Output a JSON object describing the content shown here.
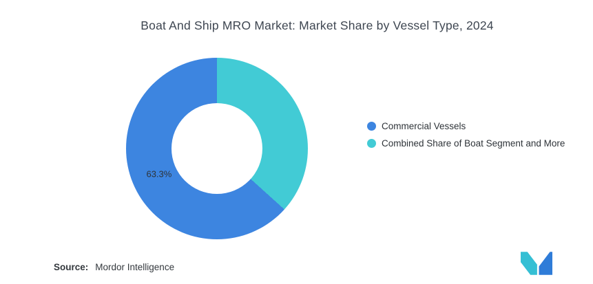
{
  "chart_data": {
    "type": "pie",
    "donut": true,
    "title": "Boat And Ship MRO Market: Market Share by Vessel Type, 2024",
    "slices": [
      {
        "name": "Commercial Vessels",
        "value": 63.3,
        "color": "#3D85E0",
        "data_label": "63.3%"
      },
      {
        "name": "Combined Share of Boat Segment and More",
        "value": 36.7,
        "color": "#42CBD5",
        "data_label": ""
      }
    ],
    "start": "top",
    "direction": "clockwise",
    "legend_position": "right",
    "grid": false,
    "data_label_color": "#2e3338"
  },
  "legend": {
    "items": [
      {
        "label": "Commercial Vessels",
        "color": "#3D85E0"
      },
      {
        "label": "Combined Share of Boat Segment and More",
        "color": "#42CBD5"
      }
    ]
  },
  "footer": {
    "source_label": "Source:",
    "source_value": "Mordor Intelligence"
  },
  "logo": {
    "name": "mordor-intelligence-logo",
    "teal": "#35BFD4",
    "blue": "#2F7CD8"
  }
}
